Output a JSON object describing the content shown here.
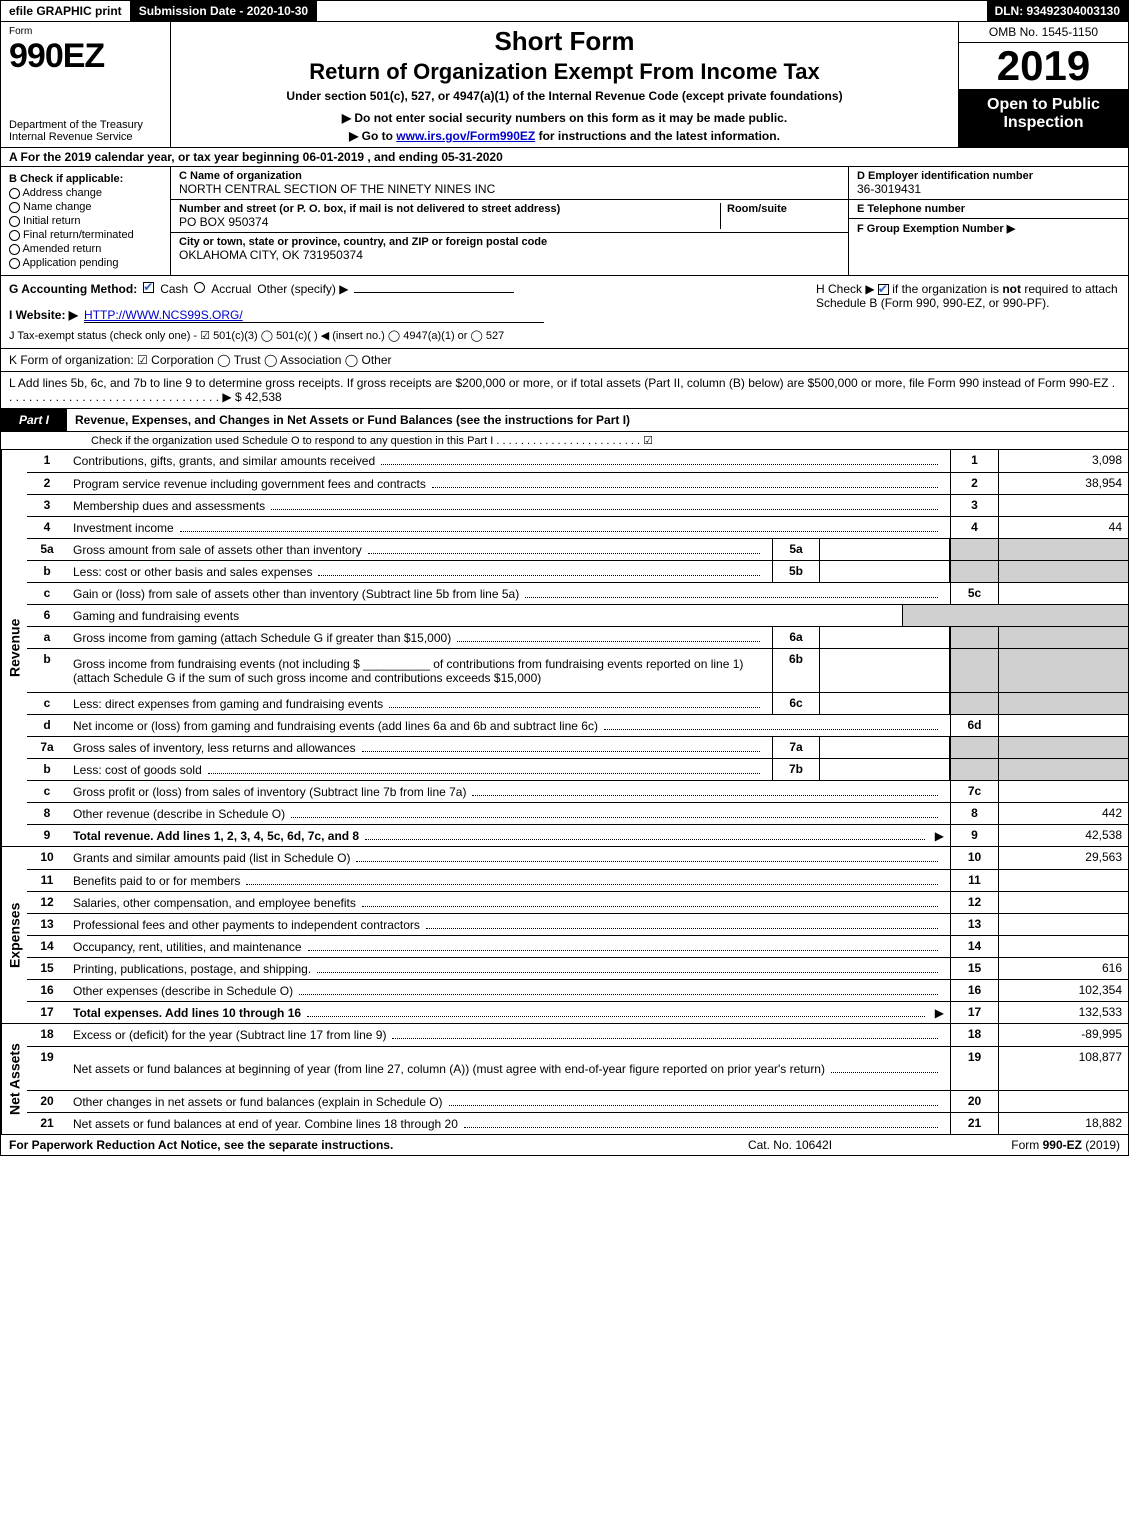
{
  "top": {
    "efile": "efile GRAPHIC print",
    "subdate_label": "Submission Date - 2020-10-30",
    "dln": "DLN: 93492304003130"
  },
  "header": {
    "form_word": "Form",
    "form_num": "990EZ",
    "dept": "Department of the Treasury",
    "irs": "Internal Revenue Service",
    "short": "Short Form",
    "return": "Return of Organization Exempt From Income Tax",
    "under": "Under section 501(c), 527, or 4947(a)(1) of the Internal Revenue Code (except private foundations)",
    "warn": "▶ Do not enter social security numbers on this form as it may be made public.",
    "goto_pre": "▶ Go to ",
    "goto_link": "www.irs.gov/Form990EZ",
    "goto_post": " for instructions and the latest information.",
    "omb": "OMB No. 1545-1150",
    "year": "2019",
    "open": "Open to Public Inspection"
  },
  "a_line": "A  For the 2019 calendar year, or tax year beginning 06-01-2019 , and ending 05-31-2020",
  "b": {
    "label": "B  Check if applicable:",
    "opts": [
      "Address change",
      "Name change",
      "Initial return",
      "Final return/terminated",
      "Amended return",
      "Application pending"
    ]
  },
  "c": {
    "name_label": "C Name of organization",
    "name": "NORTH CENTRAL SECTION OF THE NINETY NINES INC",
    "street_label": "Number and street (or P. O. box, if mail is not delivered to street address)",
    "room_label": "Room/suite",
    "street": "PO BOX 950374",
    "city_label": "City or town, state or province, country, and ZIP or foreign postal code",
    "city": "OKLAHOMA CITY, OK  731950374"
  },
  "d": {
    "ein_label": "D Employer identification number",
    "ein": "36-3019431",
    "phone_label": "E Telephone number",
    "group_label": "F Group Exemption Number  ▶"
  },
  "g": {
    "acct": "G Accounting Method:",
    "cash": "Cash",
    "accr": "Accrual",
    "other": "Other (specify) ▶"
  },
  "h": {
    "text1": "H  Check ▶ ",
    "text2": " if the organization is ",
    "not": "not",
    "text3": " required to attach Schedule B (Form 990, 990-EZ, or 990-PF)."
  },
  "i": {
    "label": "I Website: ▶",
    "url": "HTTP://WWW.NCS99S.ORG/"
  },
  "j": "J Tax-exempt status (check only one) - ☑ 501(c)(3)  ◯ 501(c)(  ) ◀ (insert no.)  ◯ 4947(a)(1) or  ◯ 527",
  "k": "K Form of organization:  ☑ Corporation  ◯ Trust  ◯ Association  ◯ Other",
  "l": {
    "text": "L Add lines 5b, 6c, and 7b to line 9 to determine gross receipts. If gross receipts are $200,000 or more, or if total assets (Part II, column (B) below) are $500,000 or more, file Form 990 instead of Form 990-EZ  . . . . . . . . . . . . . . . . . . . . . . . . . . . . . . . . .  ▶ $",
    "amount": "42,538"
  },
  "part1": {
    "tab": "Part I",
    "title": "Revenue, Expenses, and Changes in Net Assets or Fund Balances (see the instructions for Part I)",
    "sub": "Check if the organization used Schedule O to respond to any question in this Part I . . . . . . . . . . . . . . . . . . . . . . . . ☑"
  },
  "sections": {
    "revenue_label": "Revenue",
    "expenses_label": "Expenses",
    "netassets_label": "Net Assets"
  },
  "revenue_rows": [
    {
      "n": "1",
      "d": "Contributions, gifts, grants, and similar amounts received",
      "rn": "1",
      "v": "3,098"
    },
    {
      "n": "2",
      "d": "Program service revenue including government fees and contracts",
      "rn": "2",
      "v": "38,954"
    },
    {
      "n": "3",
      "d": "Membership dues and assessments",
      "rn": "3",
      "v": ""
    },
    {
      "n": "4",
      "d": "Investment income",
      "rn": "4",
      "v": "44"
    },
    {
      "n": "5a",
      "d": "Gross amount from sale of assets other than inventory",
      "sub": "5a",
      "sv": ""
    },
    {
      "n": "b",
      "d": "Less: cost or other basis and sales expenses",
      "sub": "5b",
      "sv": ""
    },
    {
      "n": "c",
      "d": "Gain or (loss) from sale of assets other than inventory (Subtract line 5b from line 5a)",
      "rn": "5c",
      "v": ""
    },
    {
      "n": "6",
      "d": "Gaming and fundraising events",
      "plain": true
    },
    {
      "n": "a",
      "d": "Gross income from gaming (attach Schedule G if greater than $15,000)",
      "sub": "6a",
      "sv": ""
    },
    {
      "n": "b",
      "d": "Gross income from fundraising events (not including $ __________ of contributions from fundraising events reported on line 1) (attach Schedule G if the sum of such gross income and contributions exceeds $15,000)",
      "sub": "6b",
      "sv": "",
      "tall": true
    },
    {
      "n": "c",
      "d": "Less: direct expenses from gaming and fundraising events",
      "sub": "6c",
      "sv": ""
    },
    {
      "n": "d",
      "d": "Net income or (loss) from gaming and fundraising events (add lines 6a and 6b and subtract line 6c)",
      "rn": "6d",
      "v": ""
    },
    {
      "n": "7a",
      "d": "Gross sales of inventory, less returns and allowances",
      "sub": "7a",
      "sv": ""
    },
    {
      "n": "b",
      "d": "Less: cost of goods sold",
      "sub": "7b",
      "sv": ""
    },
    {
      "n": "c",
      "d": "Gross profit or (loss) from sales of inventory (Subtract line 7b from line 7a)",
      "rn": "7c",
      "v": ""
    },
    {
      "n": "8",
      "d": "Other revenue (describe in Schedule O)",
      "rn": "8",
      "v": "442"
    },
    {
      "n": "9",
      "d": "Total revenue. Add lines 1, 2, 3, 4, 5c, 6d, 7c, and 8",
      "rn": "9",
      "v": "42,538",
      "bold": true,
      "arrow": true
    }
  ],
  "expense_rows": [
    {
      "n": "10",
      "d": "Grants and similar amounts paid (list in Schedule O)",
      "rn": "10",
      "v": "29,563"
    },
    {
      "n": "11",
      "d": "Benefits paid to or for members",
      "rn": "11",
      "v": ""
    },
    {
      "n": "12",
      "d": "Salaries, other compensation, and employee benefits",
      "rn": "12",
      "v": ""
    },
    {
      "n": "13",
      "d": "Professional fees and other payments to independent contractors",
      "rn": "13",
      "v": ""
    },
    {
      "n": "14",
      "d": "Occupancy, rent, utilities, and maintenance",
      "rn": "14",
      "v": ""
    },
    {
      "n": "15",
      "d": "Printing, publications, postage, and shipping.",
      "rn": "15",
      "v": "616"
    },
    {
      "n": "16",
      "d": "Other expenses (describe in Schedule O)",
      "rn": "16",
      "v": "102,354"
    },
    {
      "n": "17",
      "d": "Total expenses. Add lines 10 through 16",
      "rn": "17",
      "v": "132,533",
      "bold": true,
      "arrow": true
    }
  ],
  "net_rows": [
    {
      "n": "18",
      "d": "Excess or (deficit) for the year (Subtract line 17 from line 9)",
      "rn": "18",
      "v": "-89,995"
    },
    {
      "n": "19",
      "d": "Net assets or fund balances at beginning of year (from line 27, column (A)) (must agree with end-of-year figure reported on prior year's return)",
      "rn": "19",
      "v": "108,877",
      "tall": true
    },
    {
      "n": "20",
      "d": "Other changes in net assets or fund balances (explain in Schedule O)",
      "rn": "20",
      "v": ""
    },
    {
      "n": "21",
      "d": "Net assets or fund balances at end of year. Combine lines 18 through 20",
      "rn": "21",
      "v": "18,882"
    }
  ],
  "footer": {
    "f1": "For Paperwork Reduction Act Notice, see the separate instructions.",
    "f2": "Cat. No. 10642I",
    "f3_a": "Form ",
    "f3_b": "990-EZ",
    "f3_c": " (2019)"
  }
}
